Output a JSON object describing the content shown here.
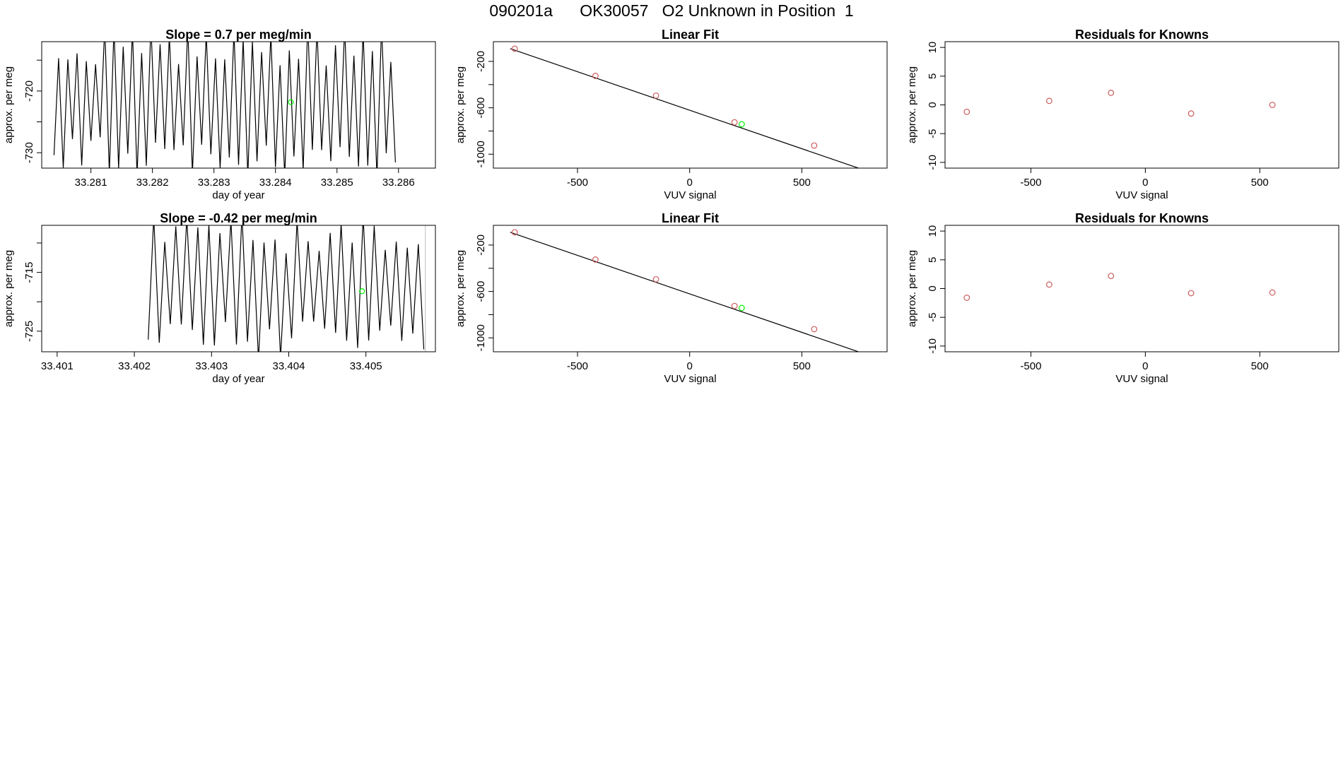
{
  "figure_title": "090201a      OK30057   O2 Unknown in Position  1",
  "colors": {
    "line": "#000000",
    "known": "#cd5c5c",
    "unknown": "#00ee00",
    "frame": "#000000"
  },
  "chart_data": [
    {
      "id": "p1",
      "type": "line",
      "title": "Slope =  0.7  per meg/min",
      "xlabel": "day of year",
      "ylabel": "approx. per meg",
      "xlim": [
        33.2802,
        33.2866
      ],
      "ylim": [
        -732.5,
        -712
      ],
      "xticks": [
        33.281,
        33.282,
        33.283,
        33.284,
        33.285,
        33.286
      ],
      "xtick_labels": [
        "33.281",
        "33.282",
        "33.283",
        "33.284",
        "33.285",
        "33.286"
      ],
      "yticks": [
        -730,
        -725,
        -720,
        -715
      ],
      "ytick_labels": [
        "-730",
        "",
        "-720",
        ""
      ],
      "signal": {
        "x_start": 33.2804,
        "x_end": 33.28595,
        "cycles": 37,
        "y_min": -734,
        "y_max": -709,
        "seed": 7
      },
      "marker": {
        "x": 33.28425,
        "y": -721.8
      }
    },
    {
      "id": "p2",
      "type": "scatter",
      "title": "Linear Fit",
      "xlabel": "VUV signal",
      "ylabel": "approx. per meg",
      "xlim": [
        -875,
        880
      ],
      "ylim": [
        -1120,
        -30
      ],
      "xticks": [
        -500,
        0,
        500
      ],
      "xtick_labels": [
        "-500",
        "0",
        "500"
      ],
      "yticks": [
        -1000,
        -800,
        -600,
        -400,
        -200
      ],
      "ytick_labels": [
        "-1000",
        "",
        "-600",
        "",
        "-200"
      ],
      "fit_line": {
        "x": [
          -800,
          790
        ],
        "y": [
          -90,
          -1145
        ]
      },
      "knowns": {
        "x": [
          -780,
          -420,
          -150,
          200,
          555
        ],
        "y": [
          -90,
          -325,
          -495,
          -725,
          -925
        ]
      },
      "unknown": {
        "x": [
          232
        ],
        "y": [
          -742
        ]
      }
    },
    {
      "id": "p3",
      "type": "scatter",
      "title": "Residuals for Knowns",
      "xlabel": "VUV signal",
      "ylabel": "approx. per meg",
      "xlim": [
        -875,
        845
      ],
      "ylim": [
        -11,
        11
      ],
      "xticks": [
        -500,
        0,
        500
      ],
      "xtick_labels": [
        "-500",
        "0",
        "500"
      ],
      "yticks": [
        -10,
        -5,
        0,
        5,
        10
      ],
      "ytick_labels": [
        "-10",
        "-5",
        "0",
        "5",
        "10"
      ],
      "points": {
        "x": [
          -780,
          -420,
          -150,
          200,
          555
        ],
        "y": [
          -1.2,
          0.7,
          2.1,
          -1.5,
          0
        ]
      }
    },
    {
      "id": "p4",
      "type": "line",
      "title": "Slope =  -0.42  per meg/min",
      "xlabel": "day of year",
      "ylabel": "approx. per meg",
      "xlim": [
        33.4008,
        33.4059
      ],
      "ylim": [
        -728.5,
        -707
      ],
      "xticks": [
        33.401,
        33.402,
        33.403,
        33.404,
        33.405
      ],
      "xtick_labels": [
        "33.401",
        "33.402",
        "33.403",
        "33.404",
        "33.405"
      ],
      "yticks": [
        -725,
        -720,
        -715,
        -710
      ],
      "ytick_labels": [
        "-725",
        "",
        "-715",
        ""
      ],
      "signal": {
        "x_start": 33.40218,
        "x_end": 33.40575,
        "cycles": 25,
        "y_min": -730,
        "y_max": -705,
        "seed": 13
      },
      "marker": {
        "x": 33.40495,
        "y": -718.2
      },
      "end_tick_x": 33.40577
    },
    {
      "id": "p5",
      "type": "scatter",
      "title": "Linear Fit",
      "xlabel": "VUV signal",
      "ylabel": "approx. per meg",
      "xlim": [
        -875,
        880
      ],
      "ylim": [
        -1120,
        -30
      ],
      "xticks": [
        -500,
        0,
        500
      ],
      "xtick_labels": [
        "-500",
        "0",
        "500"
      ],
      "yticks": [
        -1000,
        -800,
        -600,
        -400,
        -200
      ],
      "ytick_labels": [
        "-1000",
        "",
        "-600",
        "",
        "-200"
      ],
      "fit_line": {
        "x": [
          -800,
          790
        ],
        "y": [
          -90,
          -1145
        ]
      },
      "knowns": {
        "x": [
          -780,
          -420,
          -150,
          200,
          555
        ],
        "y": [
          -90,
          -325,
          -495,
          -725,
          -925
        ]
      },
      "unknown": {
        "x": [
          232
        ],
        "y": [
          -742
        ]
      }
    },
    {
      "id": "p6",
      "type": "scatter",
      "title": "Residuals for Knowns",
      "xlabel": "VUV signal",
      "ylabel": "approx. per meg",
      "xlim": [
        -875,
        845
      ],
      "ylim": [
        -11,
        11
      ],
      "xticks": [
        -500,
        0,
        500
      ],
      "xtick_labels": [
        "-500",
        "0",
        "500"
      ],
      "yticks": [
        -10,
        -5,
        0,
        5,
        10
      ],
      "ytick_labels": [
        "-10",
        "-5",
        "0",
        "5",
        "10"
      ],
      "points": {
        "x": [
          -780,
          -420,
          -150,
          200,
          555
        ],
        "y": [
          -1.6,
          0.7,
          2.2,
          -0.8,
          -0.7
        ]
      }
    }
  ]
}
